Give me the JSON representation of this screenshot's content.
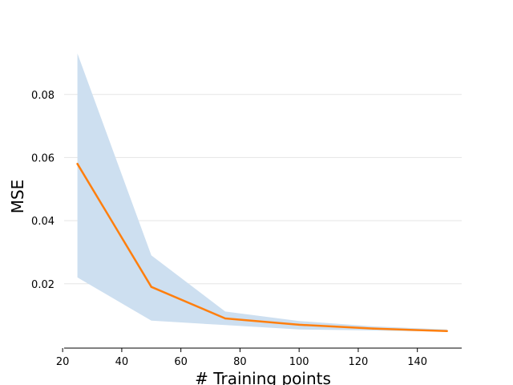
{
  "chart_data": {
    "type": "line",
    "xlabel": "# Training points",
    "ylabel": "MSE",
    "x": [
      25,
      50,
      75,
      100,
      125,
      150
    ],
    "series": [
      {
        "values": [
          0.058,
          0.019,
          0.009,
          0.007,
          0.0058,
          0.005
        ],
        "band_upper": [
          0.093,
          0.029,
          0.0112,
          0.0082,
          0.0065,
          0.0055
        ],
        "band_lower": [
          0.022,
          0.0083,
          0.0069,
          0.0055,
          0.0052,
          0.0048
        ]
      }
    ],
    "xlim": [
      20.5,
      155
    ],
    "ylim": [
      -0.0004,
      0.0957
    ],
    "xticks": [
      20,
      40,
      60,
      80,
      100,
      120,
      140
    ],
    "yticks": [
      0.02,
      0.04,
      0.06,
      0.08
    ],
    "xtick_labels": [
      "20",
      "40",
      "60",
      "80",
      "100",
      "120",
      "140"
    ],
    "ytick_labels": [
      "0.02",
      "0.04",
      "0.06",
      "0.08"
    ],
    "grid": "horizontal",
    "line_color": "#ff7f0e",
    "band_color": "#cddff0",
    "grid_color": "#e5e5e5",
    "axis_color": "#000000"
  }
}
